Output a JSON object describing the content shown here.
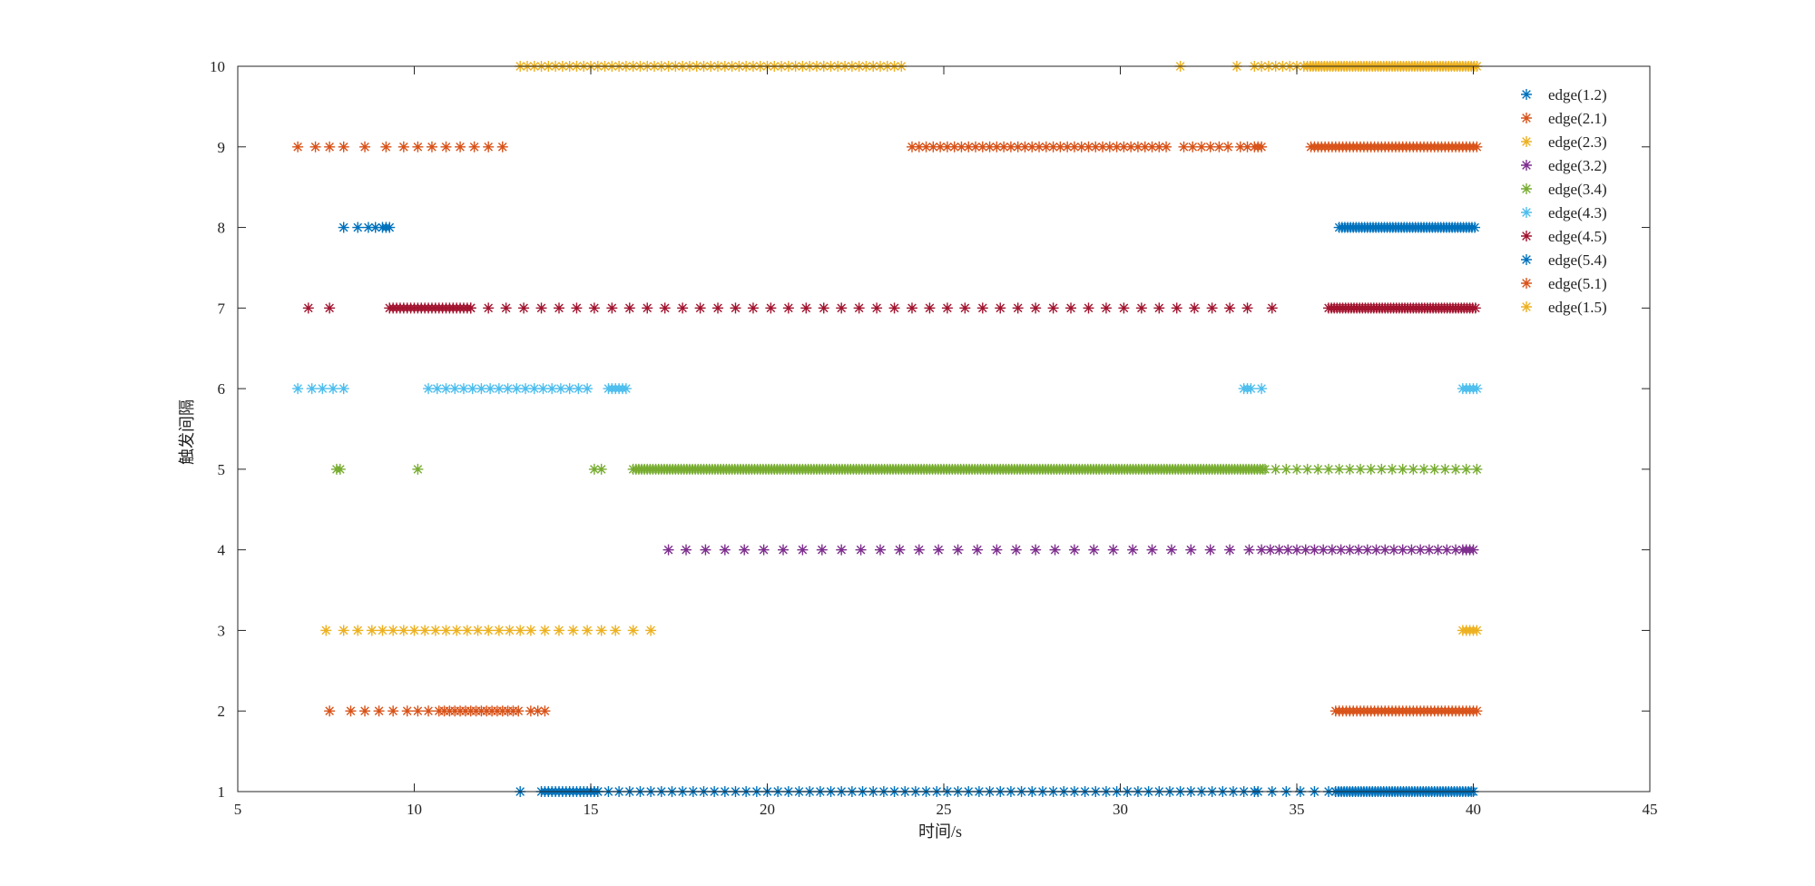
{
  "chart_data": {
    "type": "scatter",
    "title": "",
    "xlabel": "时间/s",
    "ylabel": "触发间隔",
    "xlim": [
      5,
      45
    ],
    "ylim": [
      1,
      10
    ],
    "xticks": [
      "5",
      "10",
      "15",
      "20",
      "25",
      "30",
      "35",
      "40",
      "45"
    ],
    "yticks": [
      "1",
      "2",
      "3",
      "4",
      "5",
      "6",
      "7",
      "8",
      "9",
      "10"
    ],
    "grid": false,
    "legend_position": "top-right",
    "marker": "asterisk",
    "series": [
      {
        "name": "edge(1.2)",
        "color": "#0072BD",
        "y": 1,
        "x": [
          13.0,
          13.6,
          15.1,
          36.1,
          40.0
        ],
        "segments": [
          [
            13.7,
            15.2,
            0.1
          ],
          [
            15.2,
            33.9,
            0.3
          ],
          [
            33.9,
            36.0,
            0.4
          ],
          [
            36.1,
            40.0,
            0.08
          ]
        ]
      },
      {
        "name": "edge(2.1)",
        "color": "#D95319",
        "y": 2,
        "x": [
          7.6,
          8.2,
          8.6,
          9.0,
          9.4,
          9.8,
          10.1,
          10.4,
          13.3,
          13.5,
          13.7
        ],
        "segments": [
          [
            10.7,
            13.0,
            0.15
          ],
          [
            36.1,
            40.1,
            0.1
          ]
        ]
      },
      {
        "name": "edge(2.3)",
        "color": "#EDB120",
        "y": 3,
        "x": [
          7.5,
          8.0,
          8.4,
          8.8,
          9.1,
          9.4,
          9.7,
          10.0,
          10.3,
          10.6,
          10.9,
          11.2,
          11.5,
          11.8,
          12.1,
          12.4,
          12.7,
          13.0,
          13.3,
          13.7,
          14.1,
          14.5,
          14.9,
          15.3,
          15.7,
          16.2,
          16.7,
          39.7,
          39.8,
          39.9,
          40.0,
          40.1
        ],
        "segments": []
      },
      {
        "name": "edge(3.2)",
        "color": "#7E2F8E",
        "y": 4,
        "x": [
          17.2,
          39.7,
          39.8,
          39.9,
          40.0
        ],
        "segments": [
          [
            17.7,
            34.0,
            0.55
          ],
          [
            34.0,
            39.6,
            0.25
          ]
        ]
      },
      {
        "name": "edge(3.4)",
        "color": "#77AC30",
        "y": 5,
        "x": [
          7.8,
          7.9,
          10.1,
          15.1,
          15.3
        ],
        "segments": [
          [
            16.2,
            34.1,
            0.08
          ],
          [
            34.1,
            40.1,
            0.3
          ]
        ]
      },
      {
        "name": "edge(4.3)",
        "color": "#4DBEEE",
        "y": 6,
        "x": [
          6.7,
          7.1,
          7.4,
          7.7,
          8.0,
          15.5,
          15.6,
          15.7,
          15.8,
          15.9,
          16.0,
          33.5,
          33.6,
          33.7,
          34.0,
          39.7,
          39.8,
          39.9,
          40.0,
          40.1
        ],
        "segments": [
          [
            10.4,
            15.0,
            0.25
          ]
        ]
      },
      {
        "name": "edge(4.5)",
        "color": "#A2142F",
        "y": 7,
        "x": [
          7.0,
          7.6,
          34.3
        ],
        "segments": [
          [
            9.3,
            11.6,
            0.1
          ],
          [
            11.6,
            33.9,
            0.5
          ],
          [
            35.9,
            40.1,
            0.08
          ]
        ]
      },
      {
        "name": "edge(5.4)",
        "color": "#0072BD",
        "y": 8,
        "x": [
          8.0,
          8.4,
          8.7,
          8.9,
          9.1,
          9.2,
          9.3
        ],
        "segments": [
          [
            36.2,
            40.1,
            0.08
          ]
        ]
      },
      {
        "name": "edge(5.1)",
        "color": "#D95319",
        "y": 9,
        "x": [
          6.7,
          7.2,
          7.6,
          8.0,
          8.6,
          9.2,
          9.7,
          10.1,
          10.5,
          10.9,
          11.3,
          11.7,
          12.1,
          12.5,
          33.4,
          33.6,
          33.8,
          33.9,
          34.0
        ],
        "segments": [
          [
            24.1,
            31.4,
            0.2
          ],
          [
            31.8,
            33.2,
            0.25
          ],
          [
            35.4,
            40.1,
            0.1
          ]
        ]
      },
      {
        "name": "edge(1.5)",
        "color": "#EDB120",
        "y": 10,
        "x": [
          31.7,
          33.3
        ],
        "segments": [
          [
            13.0,
            23.9,
            0.2
          ],
          [
            33.8,
            35.3,
            0.2
          ],
          [
            35.3,
            40.1,
            0.08
          ]
        ]
      }
    ]
  }
}
